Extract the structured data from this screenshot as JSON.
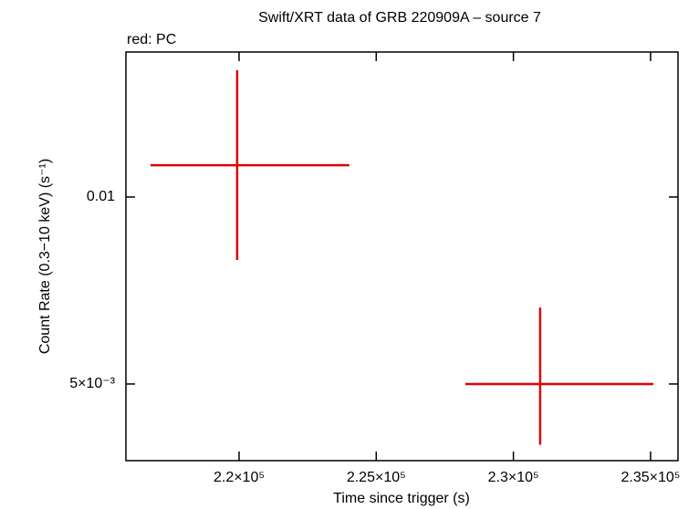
{
  "chart_data": {
    "type": "errorbar",
    "title": "Swift/XRT data of GRB 220909A – source 7",
    "subtitle": "red: PC",
    "x_label": "Time since trigger (s)",
    "y_label": "Count Rate (0.3−10 keV) (s⁻¹)",
    "xlim": [
      215876,
      236000
    ],
    "ylim": [
      0.003763,
      0.01712
    ],
    "y_scale": "log",
    "xticks": [
      {
        "value": 220000,
        "label": "2.2×10⁵"
      },
      {
        "value": 225000,
        "label": "2.25×10⁵"
      },
      {
        "value": 230000,
        "label": "2.3×10⁵"
      },
      {
        "value": 235000,
        "label": "2.35×10⁵"
      }
    ],
    "yticks": [
      {
        "value": 0.005,
        "label": "5×10⁻³"
      },
      0.01
    ],
    "series": [
      {
        "name": "PC",
        "color": "#e00000",
        "x": [
          219930,
          230975
        ],
        "xerr_minus": [
          3160,
          2727
        ],
        "xerr_plus": [
          4090,
          4125
        ],
        "values": [
          0.01125,
          0.005
        ],
        "yerr_minus": [
          0.00333,
          0.00101
        ],
        "yerr_plus": [
          0.00475,
          0.00164
        ]
      }
    ]
  }
}
